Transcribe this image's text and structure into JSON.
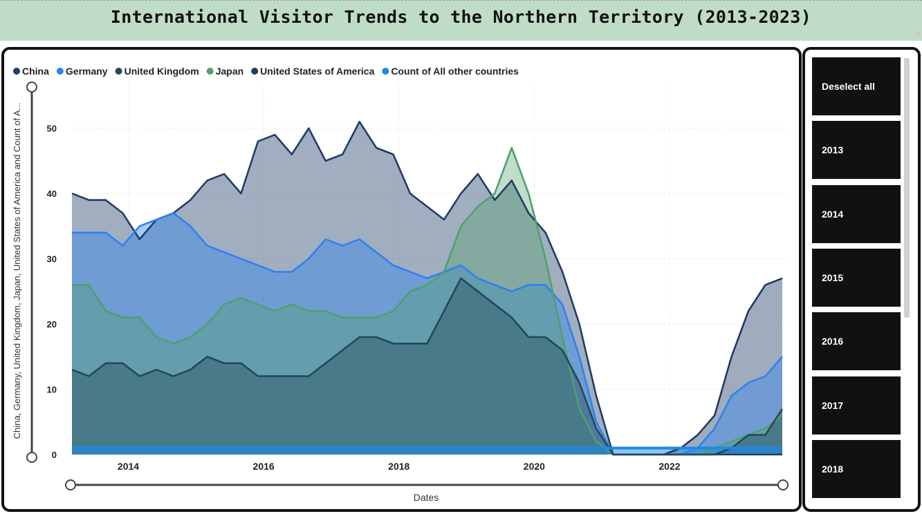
{
  "page": {
    "title": "International Visitor Trends to the Northern Territory (2013-2023)"
  },
  "slicer": {
    "items": [
      "Deselect all",
      "2013",
      "2014",
      "2015",
      "2016",
      "2017",
      "2018"
    ]
  },
  "chart_data": {
    "type": "area",
    "xlabel": "Dates",
    "ylabel": "China, Germany, United Kingdom, Japan, United States of America and Count of A...",
    "x_ticks": [
      "2014",
      "2016",
      "2018",
      "2020",
      "2022"
    ],
    "y_ticks": [
      0,
      10,
      20,
      30,
      40,
      50
    ],
    "ylim": [
      0,
      56
    ],
    "xlim": [
      "2013-03",
      "2023-09"
    ],
    "x": [
      "2013-03",
      "2013-06",
      "2013-09",
      "2013-12",
      "2014-03",
      "2014-06",
      "2014-09",
      "2014-12",
      "2015-03",
      "2015-06",
      "2015-09",
      "2015-12",
      "2016-03",
      "2016-06",
      "2016-09",
      "2016-12",
      "2017-03",
      "2017-06",
      "2017-09",
      "2017-12",
      "2018-03",
      "2018-06",
      "2018-09",
      "2018-12",
      "2019-03",
      "2019-06",
      "2019-09",
      "2019-12",
      "2020-03",
      "2020-06",
      "2020-09",
      "2020-12",
      "2021-03",
      "2021-06",
      "2021-09",
      "2021-12",
      "2022-03",
      "2022-06",
      "2022-09",
      "2022-12",
      "2023-03",
      "2023-06",
      "2023-09"
    ],
    "grid": true,
    "legend_position": "top-left",
    "series": [
      {
        "name": "China",
        "color": "#1f3d66",
        "values": [
          40,
          39,
          39,
          37,
          33,
          36,
          37,
          39,
          42,
          43,
          40,
          48,
          49,
          46,
          50,
          45,
          46,
          51,
          47,
          46,
          40,
          38,
          36,
          40,
          43,
          39,
          42,
          37,
          34,
          28,
          20,
          9,
          0,
          0,
          0,
          0,
          0,
          0,
          0,
          0,
          0,
          0,
          0
        ]
      },
      {
        "name": "Germany",
        "color": "#2d82f0",
        "values": [
          34,
          34,
          34,
          32,
          35,
          36,
          37,
          35,
          32,
          31,
          30,
          29,
          28,
          28,
          30,
          33,
          32,
          33,
          31,
          29,
          28,
          27,
          28,
          29,
          27,
          26,
          25,
          26,
          26,
          23,
          15,
          5,
          0,
          0,
          0,
          0,
          0,
          0,
          0,
          0,
          0,
          0,
          0
        ]
      },
      {
        "name": "United Kingdom",
        "color": "#214a55",
        "values": [
          13,
          12,
          14,
          14,
          12,
          13,
          12,
          13,
          15,
          14,
          14,
          12,
          12,
          12,
          12,
          14,
          16,
          18,
          18,
          17,
          17,
          17,
          22,
          27,
          25,
          23,
          21,
          18,
          18,
          16,
          11,
          4,
          0,
          0,
          0,
          0,
          0,
          0,
          0,
          0,
          0,
          0,
          0
        ]
      },
      {
        "name": "Japan",
        "color": "#4fa06d",
        "values": [
          26,
          26,
          22,
          21,
          21,
          18,
          17,
          18,
          20,
          23,
          24,
          23,
          22,
          23,
          22,
          22,
          21,
          21,
          21,
          22,
          25,
          26,
          28,
          35,
          38,
          40,
          47,
          40,
          30,
          18,
          7,
          2,
          0,
          0,
          0,
          0,
          0,
          0,
          0,
          0,
          0,
          0,
          0
        ]
      },
      {
        "name": "United States of America",
        "color": "#1c3a63",
        "values": [
          null,
          null,
          null,
          null,
          null,
          null,
          null,
          null,
          null,
          null,
          null,
          null,
          null,
          null,
          null,
          null,
          null,
          null,
          null,
          null,
          null,
          null,
          null,
          null,
          null,
          null,
          null,
          null,
          null,
          null,
          null,
          null,
          0,
          0,
          0,
          0,
          1,
          3,
          6,
          15,
          22,
          26,
          27
        ]
      },
      {
        "name": "Count of All other countries",
        "color": "#1e88e5",
        "values": [
          1,
          1,
          1,
          1,
          1,
          1,
          1,
          1,
          1,
          1,
          1,
          1,
          1,
          1,
          1,
          1,
          1,
          1,
          1,
          1,
          1,
          1,
          1,
          1,
          1,
          1,
          1,
          1,
          1,
          1,
          1,
          1,
          1,
          1,
          1,
          1,
          1,
          1,
          1,
          1,
          1,
          1,
          1
        ]
      }
    ],
    "post_2021_overlay": {
      "Germany": [
        0,
        0,
        0,
        0,
        0,
        0,
        0,
        0,
        0,
        0,
        0,
        0,
        0,
        0,
        0,
        0,
        0,
        0,
        0,
        0,
        0,
        0,
        0,
        0,
        0,
        0,
        0,
        0,
        0,
        0,
        0,
        0,
        0,
        0,
        0,
        0,
        0,
        1,
        4,
        9,
        11,
        12,
        15
      ],
      "United Kingdom": [
        0,
        0,
        0,
        0,
        0,
        0,
        0,
        0,
        0,
        0,
        0,
        0,
        0,
        0,
        0,
        0,
        0,
        0,
        0,
        0,
        0,
        0,
        0,
        0,
        0,
        0,
        0,
        0,
        0,
        0,
        0,
        0,
        0,
        0,
        0,
        0,
        0,
        0,
        0,
        1,
        3,
        3,
        7
      ],
      "Japan": [
        0,
        0,
        0,
        0,
        0,
        0,
        0,
        0,
        0,
        0,
        0,
        0,
        0,
        0,
        0,
        0,
        0,
        0,
        0,
        0,
        0,
        0,
        0,
        0,
        0,
        0,
        0,
        0,
        0,
        0,
        0,
        0,
        0,
        0,
        0,
        0,
        0,
        0,
        1,
        2,
        3,
        4,
        6
      ]
    }
  }
}
